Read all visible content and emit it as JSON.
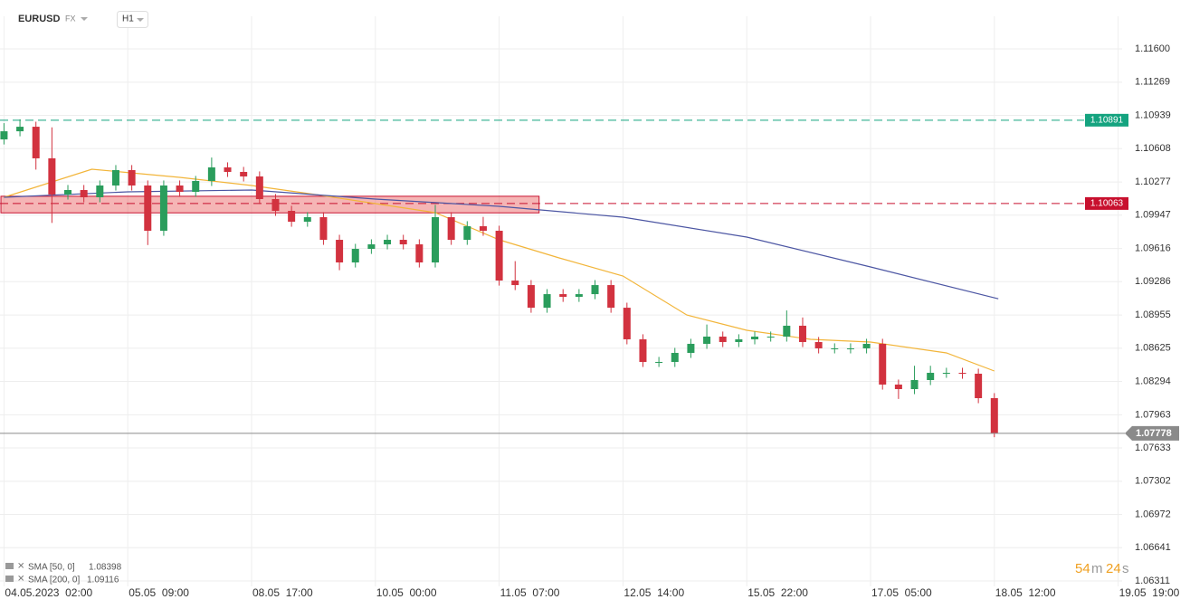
{
  "chart_data": {
    "type": "candlestick",
    "symbol": "EURUSD",
    "market": "FX",
    "interval": "H1",
    "x": [
      0,
      4,
      8,
      12,
      16,
      20,
      24,
      28,
      32,
      36,
      40,
      44,
      48,
      52,
      56,
      60,
      64,
      68,
      72,
      76,
      80,
      84,
      88,
      92,
      96,
      100,
      104,
      108,
      112,
      116,
      120,
      124,
      128,
      132,
      136,
      140,
      144,
      148,
      152,
      156,
      160,
      164,
      168,
      172,
      176,
      180,
      184,
      188,
      192,
      196,
      200,
      204,
      208,
      212,
      216,
      220,
      224,
      228,
      232,
      236,
      240,
      244,
      248
    ],
    "open": [
      1.107,
      1.10781,
      1.10826,
      1.10512,
      1.10152,
      1.10197,
      1.10125,
      1.10242,
      1.10395,
      1.10242,
      1.09792,
      1.10242,
      1.10179,
      1.10287,
      1.10422,
      1.10377,
      1.10332,
      1.10107,
      1.0999,
      1.09882,
      1.09927,
      1.09702,
      1.09477,
      1.09612,
      1.09657,
      1.09702,
      1.09657,
      1.09477,
      1.09927,
      1.09702,
      1.09837,
      1.09792,
      1.09297,
      1.09252,
      1.09027,
      1.09162,
      1.09135,
      1.09162,
      1.09252,
      1.09027,
      1.08713,
      1.08488,
      1.08488,
      1.08578,
      1.08668,
      1.0874,
      1.08686,
      1.08713,
      1.0874,
      1.0874,
      1.08848,
      1.08686,
      1.08623,
      1.08623,
      1.08623,
      1.08668,
      1.08263,
      1.08218,
      1.08308,
      1.0838,
      1.0838,
      1.08371,
      1.08128
    ],
    "high": [
      1.10862,
      1.109,
      1.10876,
      1.1082,
      1.10247,
      1.10247,
      1.10292,
      1.10445,
      1.10445,
      1.10292,
      1.10292,
      1.10292,
      1.10337,
      1.1052,
      1.10472,
      1.10427,
      1.10382,
      1.10157,
      1.1004,
      1.09977,
      1.09977,
      1.09752,
      1.09662,
      1.09707,
      1.09752,
      1.09752,
      1.09707,
      1.1005,
      1.09977,
      1.09887,
      1.0993,
      1.09842,
      1.0949,
      1.09302,
      1.09212,
      1.09212,
      1.09212,
      1.09302,
      1.09302,
      1.09077,
      1.08763,
      1.08538,
      1.08628,
      1.08718,
      1.0886,
      1.0879,
      1.08763,
      1.0879,
      1.0879,
      1.09,
      1.0893,
      1.08736,
      1.08673,
      1.08673,
      1.08718,
      1.08718,
      1.08313,
      1.0845,
      1.0845,
      1.0843,
      1.0843,
      1.08421,
      1.08178
    ],
    "low": [
      1.1065,
      1.10731,
      1.104,
      1.0987,
      1.10102,
      1.10075,
      1.10075,
      1.10192,
      1.10192,
      1.0965,
      1.09742,
      1.10129,
      1.10129,
      1.10237,
      1.10327,
      1.10282,
      1.10057,
      1.0994,
      1.09832,
      1.09832,
      1.09652,
      1.094,
      1.09427,
      1.09562,
      1.09607,
      1.09607,
      1.09427,
      1.09427,
      1.09652,
      1.09652,
      1.09742,
      1.09247,
      1.09202,
      1.08977,
      1.08977,
      1.09085,
      1.09085,
      1.09112,
      1.08977,
      1.08663,
      1.08438,
      1.08438,
      1.08438,
      1.08528,
      1.08618,
      1.08636,
      1.08636,
      1.08663,
      1.0869,
      1.0869,
      1.08636,
      1.08573,
      1.08573,
      1.08573,
      1.08573,
      1.08213,
      1.0812,
      1.08168,
      1.08258,
      1.0833,
      1.08321,
      1.08078,
      1.0774
    ],
    "close": [
      1.10781,
      1.10826,
      1.10512,
      1.10152,
      1.10197,
      1.10125,
      1.10242,
      1.10395,
      1.10242,
      1.09792,
      1.10242,
      1.10179,
      1.10287,
      1.10422,
      1.10377,
      1.10332,
      1.10107,
      1.0999,
      1.09882,
      1.09927,
      1.09702,
      1.09477,
      1.09612,
      1.09657,
      1.09702,
      1.09657,
      1.09477,
      1.09927,
      1.09702,
      1.09837,
      1.09792,
      1.09297,
      1.09252,
      1.09027,
      1.09162,
      1.09135,
      1.09162,
      1.09252,
      1.09027,
      1.08713,
      1.08488,
      1.08488,
      1.08578,
      1.08668,
      1.0874,
      1.08686,
      1.08713,
      1.0874,
      1.0874,
      1.08848,
      1.08686,
      1.08623,
      1.08623,
      1.08623,
      1.08668,
      1.08263,
      1.08218,
      1.08308,
      1.0838,
      1.0838,
      1.08371,
      1.08128,
      1.07778
    ],
    "up_color": "#2a9d5c",
    "down_color": "#d2323f",
    "series": [
      {
        "name": "SMA [50, 0]",
        "color": "#f2b53a",
        "x": [
          0,
          22,
          44,
          62,
          78,
          93,
          108,
          124,
          139,
          155,
          171,
          186,
          202,
          217,
          236,
          248
        ],
        "values": [
          1.10125,
          1.10404,
          1.10323,
          1.10242,
          1.10152,
          1.10062,
          1.09972,
          1.09702,
          1.09522,
          1.09342,
          1.08955,
          1.08803,
          1.08713,
          1.08686,
          1.08578,
          1.08398
        ]
      },
      {
        "name": "SMA [200, 0]",
        "color": "#4c56a3",
        "x": [
          0,
          31,
          62,
          93,
          124,
          155,
          186,
          217,
          249
        ],
        "values": [
          1.10125,
          1.10179,
          1.10197,
          1.10107,
          1.10035,
          1.09927,
          1.09729,
          1.09432,
          1.09116
        ]
      }
    ],
    "levels": [
      {
        "value": 1.10891,
        "color": "#14a37f"
      },
      {
        "value": 1.10063,
        "color": "#c8102e"
      }
    ],
    "zone": {
      "from": 1.0997,
      "to": 1.10135,
      "x_end": 134
    },
    "last_price": 1.07778,
    "xlim": [
      -1,
      280
    ],
    "xticks": [
      {
        "value": 0,
        "label": "04.05.2023  02:00"
      },
      {
        "value": 31,
        "label": "05.05  09:00"
      },
      {
        "value": 62,
        "label": "08.05  17:00"
      },
      {
        "value": 93,
        "label": "10.05  00:00"
      },
      {
        "value": 124,
        "label": "11.05  07:00"
      },
      {
        "value": 155,
        "label": "12.05  14:00"
      },
      {
        "value": 186,
        "label": "15.05  22:00"
      },
      {
        "value": 217,
        "label": "17.05  05:00"
      },
      {
        "value": 248,
        "label": "18.05  12:00"
      },
      {
        "value": 279,
        "label": "19.05  19:00"
      }
    ],
    "ylim": [
      1.06257,
      1.11924
    ],
    "yticks": [
      {
        "value": 1.116,
        "label": "1.11600"
      },
      1.11269,
      1.10939,
      1.10608,
      1.10277,
      1.09947,
      1.09616,
      1.09286,
      1.08955,
      1.08625,
      1.08294,
      1.07963,
      1.07633,
      1.07302,
      1.06972,
      1.06641,
      1.06311
    ],
    "grid": true,
    "timer": {
      "minutes": 54,
      "minutes_unit": "m",
      "seconds": 24,
      "seconds_unit": "s"
    }
  }
}
